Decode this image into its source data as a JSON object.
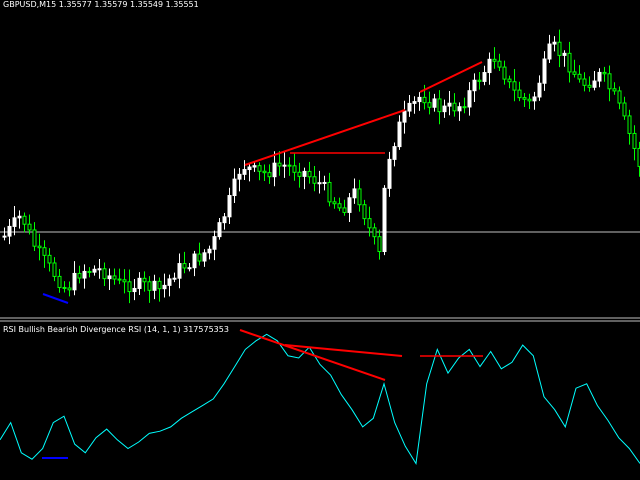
{
  "main_chart": {
    "symbol": "GBPUSD",
    "timeframe": "M15",
    "header": "GBPUSD,M15  1.35577 1.35579 1.35549 1.35551",
    "open": 1.35577,
    "high": 1.35579,
    "low": 1.35549,
    "close": 1.35551,
    "colors": {
      "bull": "#ffffff",
      "bear": "#00ff00",
      "bearish_divergence": "#ff0000",
      "bullish_divergence": "#0000ff",
      "level_line": "#c0c0c0",
      "background": "#000000"
    }
  },
  "indicator": {
    "header": "RSI Bullish Bearish Divergence RSI (14, 1, 1) 317575353",
    "name": "RSI Bullish Bearish Divergence RSI",
    "params": "(14, 1, 1)",
    "value": "317575353",
    "colors": {
      "line": "#00ffff",
      "bearish_divergence": "#ff0000",
      "bullish_divergence": "#0000ff",
      "separator": "#c0c0c0"
    }
  },
  "chart_data": {
    "type": "candlestick",
    "title": "GBPUSD,M15",
    "candles_description": "price rises from lows on the left, dips mid-chart, rallies to a top right of center, then declines",
    "rsi_series": [
      14,
      22,
      8,
      5,
      10,
      22,
      25,
      12,
      8,
      15,
      19,
      14,
      10,
      13,
      17,
      18,
      20,
      24,
      27,
      30,
      33,
      40,
      48,
      56,
      60,
      63,
      60,
      53,
      52,
      57,
      49,
      44,
      35,
      28,
      20,
      24,
      40,
      22,
      11,
      3,
      40,
      56,
      45,
      52,
      56,
      48,
      55,
      47,
      50,
      58,
      53,
      34,
      28,
      20,
      38,
      40,
      30,
      23,
      15,
      10,
      3
    ],
    "divergences": [
      {
        "kind": "bearish",
        "pane": "price"
      },
      {
        "kind": "bearish",
        "pane": "price"
      },
      {
        "kind": "bearish",
        "pane": "price"
      },
      {
        "kind": "bullish",
        "pane": "price"
      },
      {
        "kind": "bearish",
        "pane": "rsi"
      },
      {
        "kind": "bearish",
        "pane": "rsi"
      },
      {
        "kind": "bearish",
        "pane": "rsi"
      },
      {
        "kind": "bullish",
        "pane": "rsi"
      }
    ]
  }
}
